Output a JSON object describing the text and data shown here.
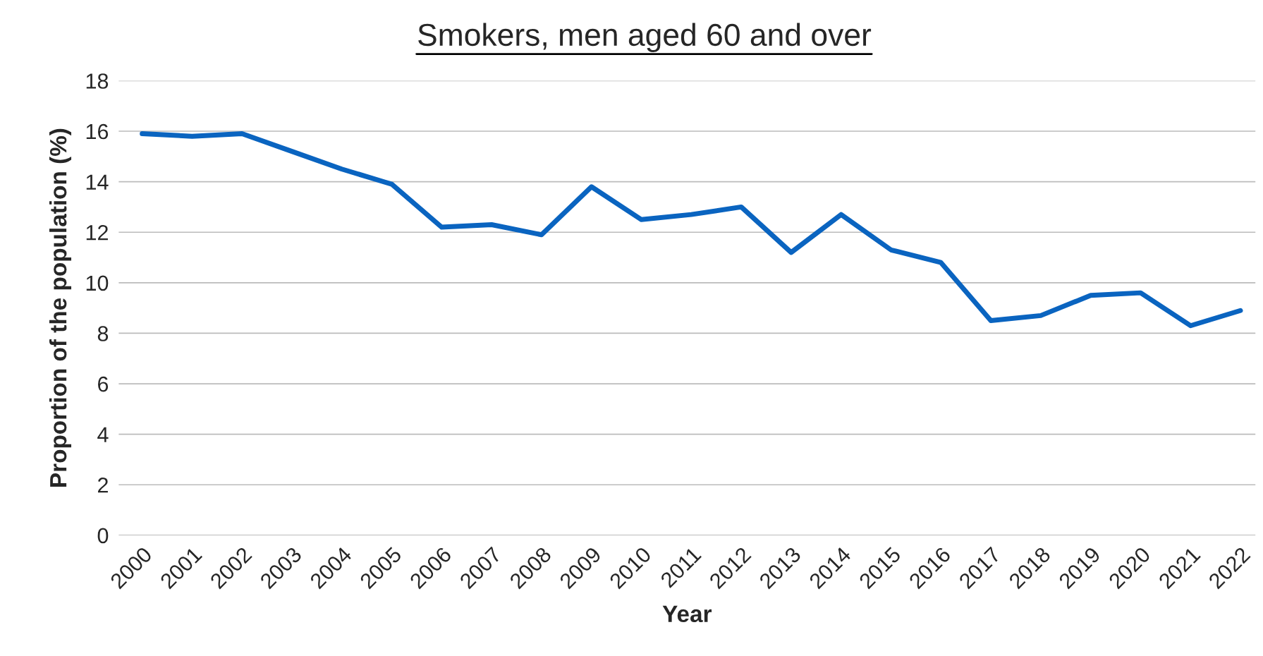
{
  "chart_data": {
    "type": "line",
    "title": "Smokers, men aged 60 and over",
    "xlabel": "Year",
    "ylabel": "Proportion of the population (%)",
    "categories": [
      "2000",
      "2001",
      "2002",
      "2003",
      "2004",
      "2005",
      "2006",
      "2007",
      "2008",
      "2009",
      "2010",
      "2011",
      "2012",
      "2013",
      "2014",
      "2015",
      "2016",
      "2017",
      "2018",
      "2019",
      "2020",
      "2021",
      "2022"
    ],
    "series": [
      {
        "color": "#0a64c0",
        "values": [
          15.9,
          15.8,
          15.9,
          15.2,
          14.5,
          13.9,
          12.2,
          12.3,
          11.9,
          13.8,
          12.5,
          12.7,
          13.0,
          11.2,
          12.7,
          11.3,
          10.8,
          8.5,
          8.7,
          9.5,
          9.6,
          8.3,
          8.9
        ]
      }
    ],
    "ylim": [
      0,
      18
    ],
    "yticks": [
      0,
      2,
      4,
      6,
      8,
      10,
      12,
      14,
      16,
      18
    ],
    "grid": "y",
    "marker": "none",
    "line_style": "solid"
  }
}
